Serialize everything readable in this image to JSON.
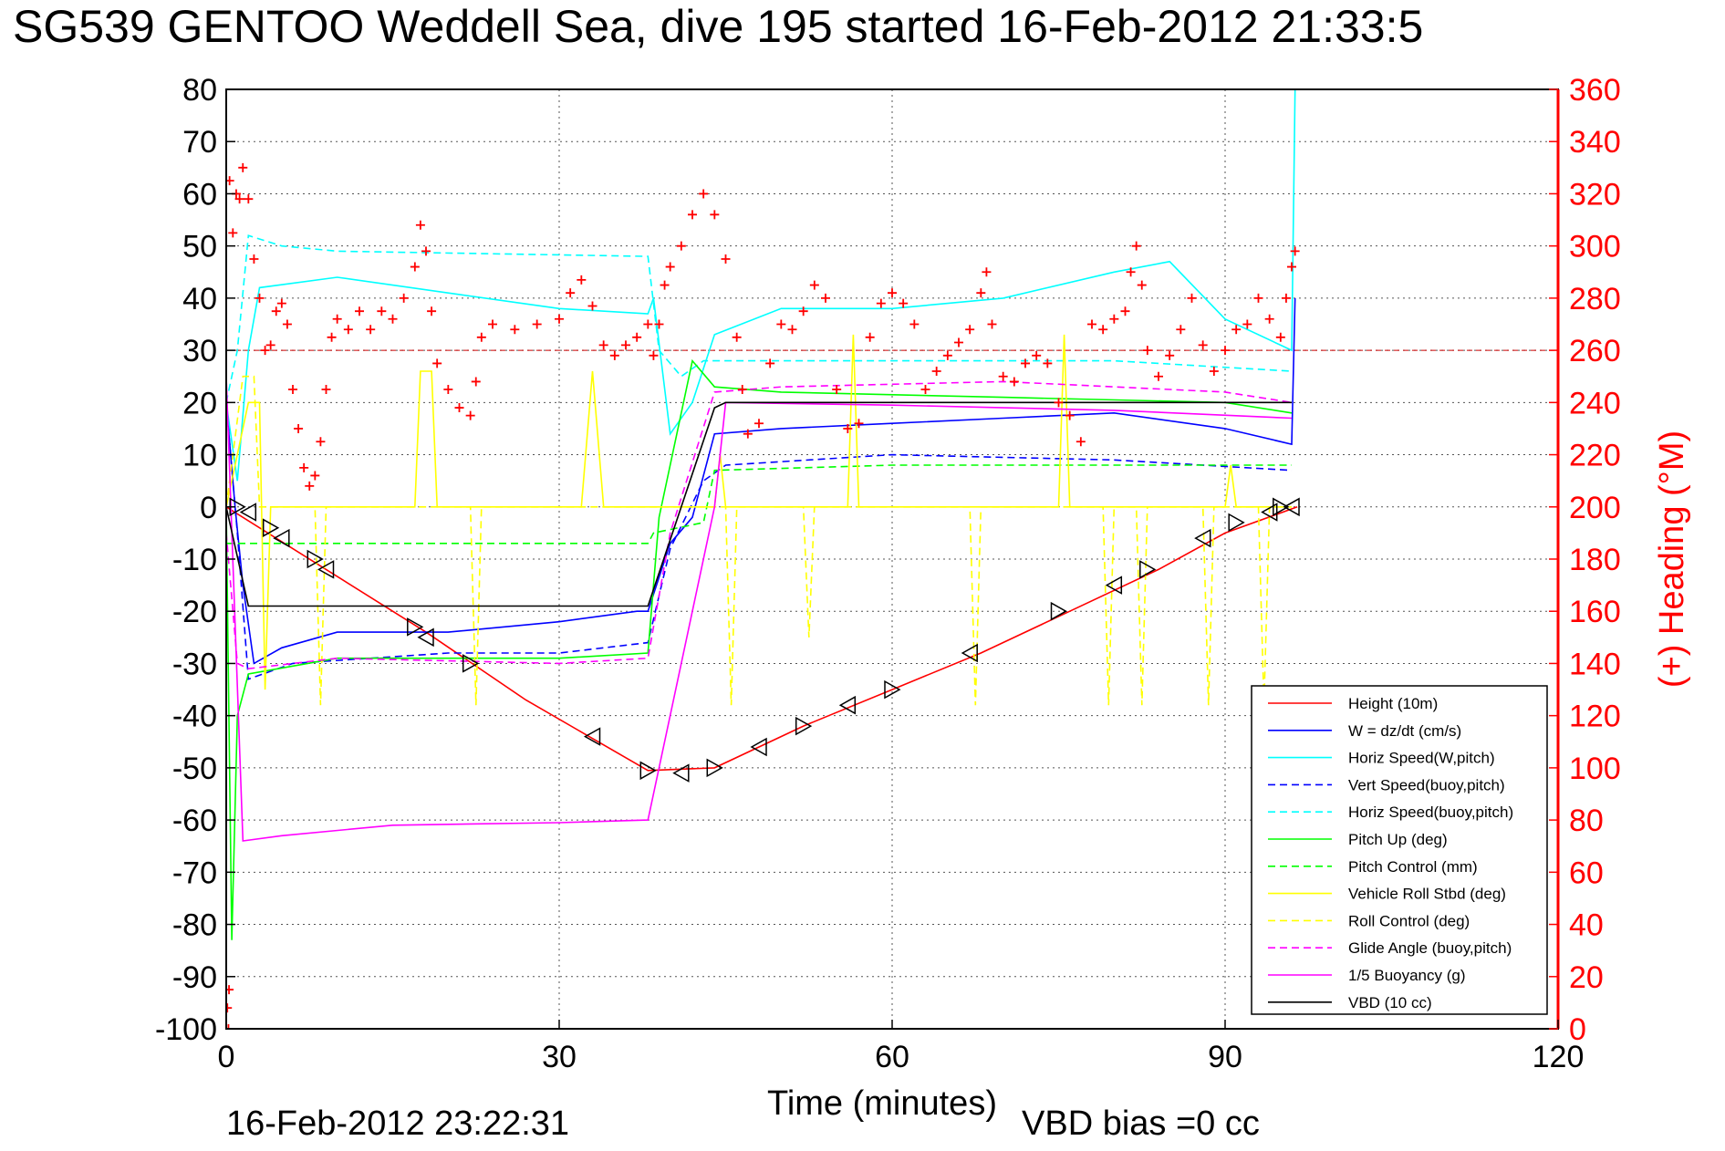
{
  "chart_data": {
    "type": "line",
    "title": "SG539 GENTOO Weddell Sea, dive 195 started 16-Feb-2012 21:33:5",
    "xlabel": "Time (minutes)",
    "ylabel_right": "(+) Heading (°M)",
    "xlim": [
      0,
      120
    ],
    "ylim": [
      -100,
      80
    ],
    "ylim_right": [
      0,
      360
    ],
    "xticks": [
      "0",
      "30",
      "60",
      "90",
      "120"
    ],
    "yticks": [
      "80",
      "70",
      "60",
      "50",
      "40",
      "30",
      "20",
      "10",
      "0",
      "-10",
      "-20",
      "-30",
      "-40",
      "-50",
      "-60",
      "-70",
      "-80",
      "-90",
      "-100"
    ],
    "yticks_right": [
      "360",
      "340",
      "320",
      "300",
      "280",
      "260",
      "240",
      "220",
      "200",
      "180",
      "160",
      "140",
      "120",
      "100",
      "80",
      "60",
      "40",
      "20",
      "0"
    ],
    "grid": true,
    "legend_position": "bottom-right",
    "footer_left": "16-Feb-2012 23:22:31",
    "footer_right": "VBD bias =0 cc",
    "colors": {
      "height": "#ff0000",
      "w": "#0000ff",
      "horiz_w": "#00ffff",
      "vert_buoy": "#0000ff",
      "horiz_buoy": "#00ffff",
      "pitch_up": "#00ff00",
      "pitch_control": "#00ff00",
      "roll": "#ffff00",
      "roll_control": "#ffff00",
      "glide": "#ff00ff",
      "buoyancy": "#ff00ff",
      "vbd": "#000000",
      "heading": "#ff0000"
    },
    "series": [
      {
        "name": "Height (10m)",
        "style": "solid",
        "color": "#ff0000",
        "points": [
          [
            0,
            0
          ],
          [
            9,
            -12
          ],
          [
            18,
            -24
          ],
          [
            27,
            -37
          ],
          [
            38,
            -50.5
          ],
          [
            44,
            -50
          ],
          [
            52,
            -42
          ],
          [
            60,
            -35
          ],
          [
            68,
            -28
          ],
          [
            76,
            -20
          ],
          [
            84,
            -12
          ],
          [
            90,
            -5
          ],
          [
            96.5,
            0
          ]
        ]
      },
      {
        "name": "W = dz/dt (cm/s)",
        "style": "solid",
        "color": "#0000ff",
        "points": [
          [
            0,
            20
          ],
          [
            0.8,
            0
          ],
          [
            1.5,
            -15
          ],
          [
            2.5,
            -30
          ],
          [
            5,
            -27
          ],
          [
            10,
            -24
          ],
          [
            20,
            -24
          ],
          [
            30,
            -22
          ],
          [
            37,
            -20
          ],
          [
            38,
            -20
          ],
          [
            40,
            -7
          ],
          [
            42,
            -2
          ],
          [
            44,
            14
          ],
          [
            50,
            15
          ],
          [
            60,
            16
          ],
          [
            70,
            17
          ],
          [
            80,
            18
          ],
          [
            90,
            15
          ],
          [
            96,
            12
          ],
          [
            96.3,
            40
          ]
        ]
      },
      {
        "name": "Horiz Speed(W,pitch)",
        "style": "solid",
        "color": "#00ffff",
        "points": [
          [
            0,
            20
          ],
          [
            1,
            5
          ],
          [
            2,
            30
          ],
          [
            3,
            42
          ],
          [
            10,
            44
          ],
          [
            20,
            41
          ],
          [
            30,
            38
          ],
          [
            38,
            37
          ],
          [
            38.5,
            40
          ],
          [
            40,
            14
          ],
          [
            42,
            20
          ],
          [
            44,
            33
          ],
          [
            50,
            38
          ],
          [
            60,
            38
          ],
          [
            70,
            40
          ],
          [
            80,
            45
          ],
          [
            85,
            47
          ],
          [
            90,
            36
          ],
          [
            95,
            31
          ],
          [
            96,
            30
          ],
          [
            96.3,
            80
          ]
        ]
      },
      {
        "name": "Vert Speed(buoy,pitch)",
        "style": "dashed",
        "color": "#0000ff",
        "points": [
          [
            0,
            20
          ],
          [
            1,
            -5
          ],
          [
            2,
            -33
          ],
          [
            6,
            -30
          ],
          [
            20,
            -28
          ],
          [
            30,
            -28
          ],
          [
            38,
            -26
          ],
          [
            40,
            -8
          ],
          [
            43,
            5
          ],
          [
            45,
            8
          ],
          [
            60,
            10
          ],
          [
            80,
            9
          ],
          [
            96,
            7
          ]
        ]
      },
      {
        "name": "Horiz Speed(buoy,pitch)",
        "style": "dashed",
        "color": "#00ffff",
        "points": [
          [
            0,
            20
          ],
          [
            1,
            30
          ],
          [
            2,
            52
          ],
          [
            5,
            50
          ],
          [
            10,
            49
          ],
          [
            38,
            48
          ],
          [
            39,
            30
          ],
          [
            41,
            25
          ],
          [
            43,
            28
          ],
          [
            45,
            28
          ],
          [
            80,
            28
          ],
          [
            96,
            26
          ]
        ]
      },
      {
        "name": "Pitch Up (deg)",
        "style": "solid",
        "color": "#00ff00",
        "points": [
          [
            0,
            0
          ],
          [
            0.5,
            -83
          ],
          [
            1,
            -40
          ],
          [
            2,
            -32
          ],
          [
            10,
            -29
          ],
          [
            30,
            -29
          ],
          [
            38,
            -28
          ],
          [
            39,
            -2
          ],
          [
            42,
            28
          ],
          [
            44,
            23
          ],
          [
            50,
            22
          ],
          [
            70,
            21
          ],
          [
            90,
            20
          ],
          [
            96,
            18
          ]
        ]
      },
      {
        "name": "Pitch Control (mm)",
        "style": "dashed",
        "color": "#00ff00",
        "points": [
          [
            0,
            -7
          ],
          [
            38,
            -7
          ],
          [
            38.5,
            -5
          ],
          [
            43,
            -3
          ],
          [
            44,
            7
          ],
          [
            60,
            8
          ],
          [
            96,
            8
          ]
        ]
      },
      {
        "name": "Vehicle Roll Stbd (deg)",
        "style": "solid",
        "color": "#ffff00",
        "points": [
          [
            0,
            0
          ],
          [
            2,
            20
          ],
          [
            3,
            20
          ],
          [
            3.5,
            -35
          ],
          [
            4,
            0
          ],
          [
            17,
            0
          ],
          [
            17.5,
            26
          ],
          [
            18.5,
            26
          ],
          [
            19,
            0
          ],
          [
            32,
            0
          ],
          [
            33,
            26
          ],
          [
            34,
            0
          ],
          [
            44,
            0
          ],
          [
            44.5,
            10
          ],
          [
            45,
            0
          ],
          [
            56,
            0
          ],
          [
            56.5,
            33
          ],
          [
            57,
            0
          ],
          [
            75,
            0
          ],
          [
            75.5,
            33
          ],
          [
            76,
            0
          ],
          [
            90,
            0
          ],
          [
            90.5,
            8
          ],
          [
            91,
            0
          ],
          [
            96,
            0
          ]
        ]
      },
      {
        "name": "Roll Control (deg)",
        "style": "dashed",
        "color": "#ffff00",
        "points": [
          [
            0,
            0
          ],
          [
            1.5,
            25
          ],
          [
            2.5,
            25
          ],
          [
            3,
            0
          ],
          [
            8,
            0
          ],
          [
            8.5,
            -38
          ],
          [
            9,
            0
          ],
          [
            22,
            0
          ],
          [
            22.5,
            -38
          ],
          [
            23,
            0
          ],
          [
            45,
            0
          ],
          [
            45.5,
            -38
          ],
          [
            46,
            0
          ],
          [
            52,
            0
          ],
          [
            52.5,
            -25
          ],
          [
            53,
            0
          ],
          [
            67,
            0
          ],
          [
            67.5,
            -38
          ],
          [
            68,
            0
          ],
          [
            79,
            0
          ],
          [
            79.5,
            -38
          ],
          [
            80,
            0
          ],
          [
            82,
            0
          ],
          [
            82.5,
            -38
          ],
          [
            83,
            0
          ],
          [
            88,
            0
          ],
          [
            88.5,
            -38
          ],
          [
            89,
            0
          ],
          [
            93,
            0
          ],
          [
            93.5,
            -38
          ],
          [
            94,
            0
          ],
          [
            96,
            0
          ]
        ]
      },
      {
        "name": "Glide Angle (buoy,pitch)",
        "style": "dashed",
        "color": "#ff00ff",
        "points": [
          [
            0,
            -5
          ],
          [
            1,
            -30
          ],
          [
            2,
            -31
          ],
          [
            10,
            -29
          ],
          [
            30,
            -30
          ],
          [
            38,
            -29
          ],
          [
            40,
            -5
          ],
          [
            44,
            22
          ],
          [
            50,
            23
          ],
          [
            70,
            24
          ],
          [
            90,
            22
          ],
          [
            96,
            20
          ]
        ]
      },
      {
        "name": "1/5 Buoyancy (g)",
        "style": "solid",
        "color": "#ff00ff",
        "points": [
          [
            0,
            25
          ],
          [
            1.5,
            -64
          ],
          [
            5,
            -63
          ],
          [
            15,
            -61
          ],
          [
            30,
            -60.5
          ],
          [
            38,
            -60
          ],
          [
            42,
            -20
          ],
          [
            44,
            0
          ],
          [
            45,
            20
          ],
          [
            60,
            19.5
          ],
          [
            80,
            18.5
          ],
          [
            96,
            17
          ]
        ]
      },
      {
        "name": "VBD (10 cc)",
        "style": "solid",
        "color": "#000000",
        "points": [
          [
            0,
            0
          ],
          [
            2,
            -19
          ],
          [
            38,
            -19
          ],
          [
            44,
            19
          ],
          [
            45,
            20
          ],
          [
            96,
            20
          ]
        ]
      }
    ],
    "heading_points": [
      [
        0.3,
        325
      ],
      [
        0.6,
        305
      ],
      [
        0.9,
        320
      ],
      [
        1.2,
        318
      ],
      [
        1.5,
        330
      ],
      [
        2,
        318
      ],
      [
        2.5,
        295
      ],
      [
        3,
        280
      ],
      [
        3.5,
        260
      ],
      [
        4,
        262
      ],
      [
        4.5,
        275
      ],
      [
        5,
        278
      ],
      [
        5.5,
        270
      ],
      [
        6,
        245
      ],
      [
        6.5,
        230
      ],
      [
        7,
        215
      ],
      [
        7.5,
        208
      ],
      [
        8,
        212
      ],
      [
        8.5,
        225
      ],
      [
        9,
        245
      ],
      [
        9.5,
        265
      ],
      [
        10,
        272
      ],
      [
        11,
        268
      ],
      [
        12,
        275
      ],
      [
        13,
        268
      ],
      [
        14,
        275
      ],
      [
        15,
        272
      ],
      [
        16,
        280
      ],
      [
        17,
        292
      ],
      [
        17.5,
        308
      ],
      [
        18,
        298
      ],
      [
        18.5,
        275
      ],
      [
        19,
        255
      ],
      [
        20,
        245
      ],
      [
        21,
        238
      ],
      [
        22,
        235
      ],
      [
        22.5,
        248
      ],
      [
        23,
        265
      ],
      [
        24,
        270
      ],
      [
        26,
        268
      ],
      [
        28,
        270
      ],
      [
        30,
        272
      ],
      [
        31,
        282
      ],
      [
        32,
        287
      ],
      [
        33,
        277
      ],
      [
        34,
        262
      ],
      [
        35,
        258
      ],
      [
        36,
        262
      ],
      [
        37,
        265
      ],
      [
        38,
        270
      ],
      [
        38.5,
        258
      ],
      [
        39,
        270
      ],
      [
        39.5,
        285
      ],
      [
        40,
        292
      ],
      [
        41,
        300
      ],
      [
        42,
        312
      ],
      [
        43,
        320
      ],
      [
        44,
        312
      ],
      [
        45,
        295
      ],
      [
        46,
        265
      ],
      [
        46.5,
        245
      ],
      [
        47,
        228
      ],
      [
        48,
        232
      ],
      [
        49,
        255
      ],
      [
        50,
        270
      ],
      [
        51,
        268
      ],
      [
        52,
        275
      ],
      [
        53,
        285
      ],
      [
        54,
        280
      ],
      [
        55,
        245
      ],
      [
        56,
        230
      ],
      [
        57,
        232
      ],
      [
        58,
        265
      ],
      [
        59,
        278
      ],
      [
        60,
        282
      ],
      [
        61,
        278
      ],
      [
        62,
        270
      ],
      [
        63,
        245
      ],
      [
        64,
        252
      ],
      [
        65,
        258
      ],
      [
        66,
        263
      ],
      [
        67,
        268
      ],
      [
        68,
        282
      ],
      [
        68.5,
        290
      ],
      [
        69,
        270
      ],
      [
        70,
        250
      ],
      [
        71,
        248
      ],
      [
        72,
        255
      ],
      [
        73,
        258
      ],
      [
        74,
        255
      ],
      [
        75,
        240
      ],
      [
        76,
        235
      ],
      [
        77,
        225
      ],
      [
        78,
        270
      ],
      [
        79,
        268
      ],
      [
        80,
        272
      ],
      [
        81,
        275
      ],
      [
        81.5,
        290
      ],
      [
        82,
        300
      ],
      [
        82.5,
        285
      ],
      [
        83,
        260
      ],
      [
        84,
        250
      ],
      [
        85,
        258
      ],
      [
        86,
        268
      ],
      [
        87,
        280
      ],
      [
        88,
        262
      ],
      [
        89,
        252
      ],
      [
        90,
        260
      ],
      [
        91,
        268
      ],
      [
        92,
        270
      ],
      [
        93,
        280
      ],
      [
        94,
        272
      ],
      [
        95,
        265
      ],
      [
        95.5,
        280
      ],
      [
        96,
        292
      ],
      [
        96.3,
        298
      ],
      [
        0.2,
        0
      ],
      [
        0.1,
        8
      ],
      [
        0.25,
        15
      ]
    ],
    "height_markers": [
      [
        1,
        0
      ],
      [
        2,
        -1
      ],
      [
        4,
        -4
      ],
      [
        5,
        -6
      ],
      [
        8,
        -10
      ],
      [
        9,
        -12
      ],
      [
        17,
        -23
      ],
      [
        18,
        -25
      ],
      [
        22,
        -30
      ],
      [
        33,
        -44
      ],
      [
        38,
        -50.5
      ],
      [
        41,
        -51
      ],
      [
        44,
        -50
      ],
      [
        48,
        -46
      ],
      [
        52,
        -42
      ],
      [
        56,
        -38
      ],
      [
        60,
        -35
      ],
      [
        67,
        -28
      ],
      [
        75,
        -20
      ],
      [
        80,
        -15
      ],
      [
        83,
        -12
      ],
      [
        88,
        -6
      ],
      [
        91,
        -3
      ],
      [
        94,
        -1
      ],
      [
        95,
        0
      ],
      [
        96,
        0
      ]
    ]
  }
}
